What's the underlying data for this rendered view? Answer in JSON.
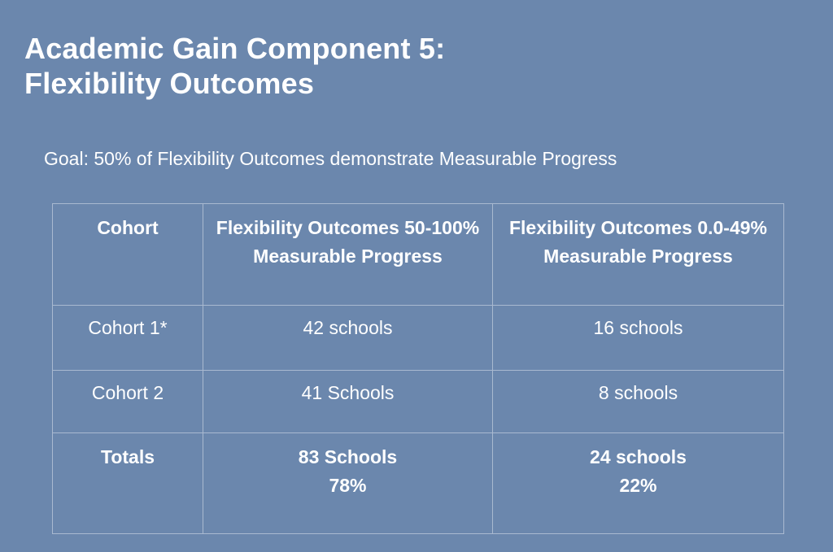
{
  "slide": {
    "title_line1": "Academic Gain Component 5:",
    "title_line2": "Flexibility Outcomes",
    "goal": "Goal: 50% of Flexibility Outcomes demonstrate Measurable Progress"
  },
  "table": {
    "headers": [
      "Cohort",
      "Flexibility Outcomes 50-100% Measurable Progress",
      "Flexibility Outcomes 0.0-49% Measurable Progress"
    ],
    "rows": [
      {
        "cohort": "Cohort 1*",
        "high": "42 schools",
        "low": "16 schools"
      },
      {
        "cohort": "Cohort 2",
        "high": "41 Schools",
        "low": "8 schools"
      }
    ],
    "totals": {
      "label": "Totals",
      "high_count": "83 Schools",
      "high_pct": "78%",
      "low_count": "24 schools",
      "low_pct": "22%"
    }
  },
  "colors": {
    "background": "#6b87ad",
    "text": "#ffffff",
    "grid": "#a9b9d0"
  }
}
